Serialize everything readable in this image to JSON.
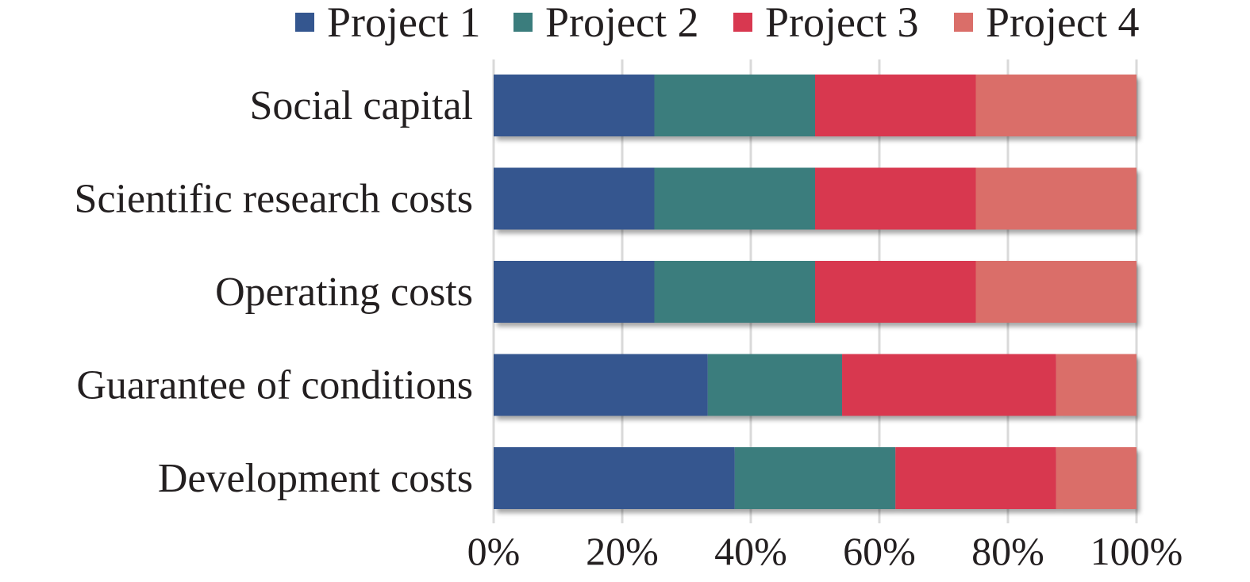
{
  "chart_data": {
    "type": "bar",
    "orientation": "horizontal",
    "stacked": "percent",
    "categories": [
      "Social capital",
      "Scientific research costs",
      "Operating costs",
      "Guarantee of conditions",
      "Development costs"
    ],
    "series": [
      {
        "name": "Project 1",
        "color": "#34568f",
        "values": [
          25,
          25,
          25,
          33.3,
          37.5
        ]
      },
      {
        "name": "Project 2",
        "color": "#3b7d7d",
        "values": [
          25,
          25,
          25,
          20.9,
          25.0
        ]
      },
      {
        "name": "Project 3",
        "color": "#d83850",
        "values": [
          25,
          25,
          25,
          33.3,
          25.0
        ]
      },
      {
        "name": "Project 4",
        "color": "#da6e69",
        "values": [
          25,
          25,
          25,
          12.5,
          12.5
        ]
      }
    ],
    "x_ticks": [
      "0%",
      "20%",
      "40%",
      "60%",
      "80%",
      "100%"
    ],
    "xlim": [
      0,
      100
    ],
    "grid": "vertical",
    "legend": "top"
  }
}
